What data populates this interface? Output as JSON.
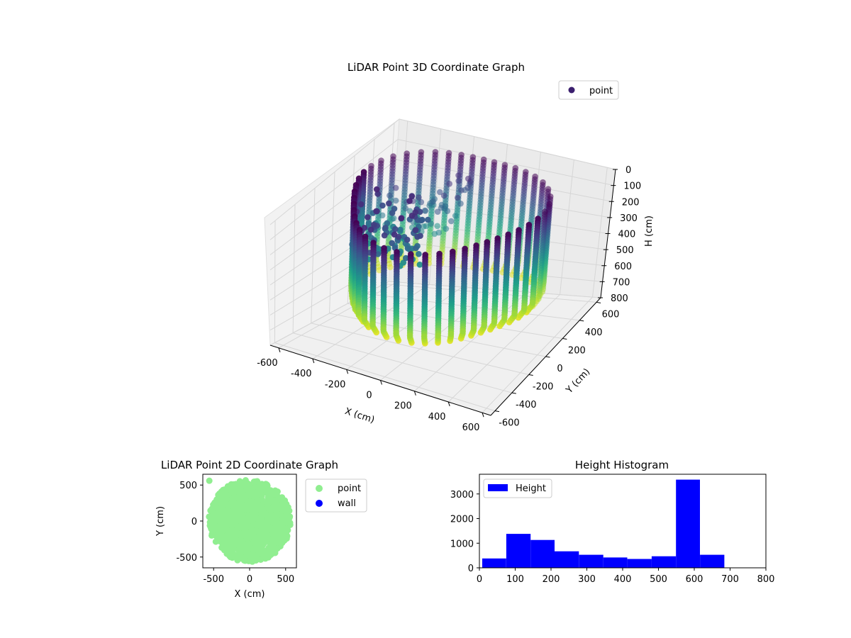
{
  "chart_data": [
    {
      "type": "scatter",
      "projection": "3d",
      "title": "LiDAR Point 3D Coordinate Graph",
      "xlabel": "X (cm)",
      "ylabel": "Y (cm)",
      "zlabel": "H (cm)",
      "xlim": [
        -650,
        650
      ],
      "ylim": [
        -650,
        650
      ],
      "zlim": [
        0,
        800
      ],
      "z_axis_inverted": true,
      "xticks": [
        -600,
        -400,
        -200,
        0,
        200,
        400,
        600
      ],
      "yticks": [
        -600,
        -400,
        -200,
        0,
        200,
        400,
        600
      ],
      "zticks": [
        0,
        100,
        200,
        300,
        400,
        500,
        600,
        700,
        800
      ],
      "colormap": "viridis",
      "grid": true,
      "legend": {
        "placement": "top-right",
        "entries": [
          "point"
        ]
      },
      "series": [
        {
          "name": "point",
          "color": "#3b1f6e",
          "description_of_cloud": {
            "radius_approx": 550,
            "height_range": [
              0,
              620
            ]
          }
        }
      ]
    },
    {
      "type": "scatter",
      "title": "LiDAR Point 2D Coordinate Graph",
      "xlabel": "X (cm)",
      "ylabel": "Y (cm)",
      "xlim": [
        -650,
        650
      ],
      "ylim": [
        -650,
        650
      ],
      "xticks": [
        -500,
        0,
        500
      ],
      "yticks": [
        -500,
        0,
        500
      ],
      "legend": {
        "placement": "outside-right",
        "entries": [
          "point",
          "wall"
        ]
      },
      "series": [
        {
          "name": "point",
          "color": "#90ee90"
        },
        {
          "name": "wall",
          "color": "#0000ff",
          "points": []
        }
      ]
    },
    {
      "type": "bar",
      "subtype": "histogram",
      "title": "Height Histogram",
      "xlabel": "",
      "ylabel": "",
      "xlim": [
        0,
        800
      ],
      "ylim": [
        0,
        3800
      ],
      "xticks": [
        0,
        100,
        200,
        300,
        400,
        500,
        600,
        700,
        800
      ],
      "yticks": [
        0,
        1000,
        2000,
        3000
      ],
      "legend": {
        "placement": "top-left",
        "entries": [
          "Height"
        ]
      },
      "series": [
        {
          "name": "Height",
          "color": "#0000ff",
          "bins": [
            {
              "x0": 8,
              "x1": 75,
              "count": 380
            },
            {
              "x0": 75,
              "x1": 143,
              "count": 1380
            },
            {
              "x0": 143,
              "x1": 210,
              "count": 1130
            },
            {
              "x0": 210,
              "x1": 278,
              "count": 670
            },
            {
              "x0": 278,
              "x1": 346,
              "count": 530
            },
            {
              "x0": 346,
              "x1": 413,
              "count": 420
            },
            {
              "x0": 413,
              "x1": 481,
              "count": 360
            },
            {
              "x0": 481,
              "x1": 549,
              "count": 470
            },
            {
              "x0": 549,
              "x1": 616,
              "count": 3580
            },
            {
              "x0": 616,
              "x1": 684,
              "count": 530
            }
          ]
        }
      ]
    }
  ]
}
